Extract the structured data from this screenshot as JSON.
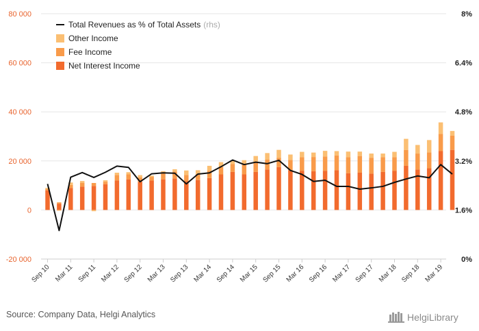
{
  "chart_data": {
    "type": "bar",
    "stacked": true,
    "categories": [
      "Sep 10",
      "Dec 10",
      "Mar 11",
      "Jun 11",
      "Sep 11",
      "Dec 11",
      "Mar 12",
      "Jun 12",
      "Sep 12",
      "Dec 12",
      "Mar 13",
      "Jun 13",
      "Sep 13",
      "Dec 13",
      "Mar 14",
      "Jun 14",
      "Sep 14",
      "Dec 14",
      "Mar 15",
      "Jun 15",
      "Sep 15",
      "Dec 15",
      "Mar 16",
      "Jun 16",
      "Sep 16",
      "Dec 16",
      "Mar 17",
      "Jun 17",
      "Sep 17",
      "Dec 17",
      "Mar 18",
      "Jun 18",
      "Sep 18",
      "Dec 18",
      "Mar 19",
      "Jun 19"
    ],
    "x_tick_labels": [
      "Sep 10",
      "Mar 11",
      "Sep 11",
      "Mar 12",
      "Sep 12",
      "Mar 13",
      "Sep 13",
      "Mar 14",
      "Sep 14",
      "Mar 15",
      "Sep 15",
      "Mar 16",
      "Sep 16",
      "Mar 17",
      "Sep 17",
      "Mar 18",
      "Sep 18",
      "Mar 19"
    ],
    "series": [
      {
        "name": "Net Interest Income",
        "color": "#f26b2e",
        "values": [
          8000,
          2500,
          9000,
          9500,
          9800,
          10500,
          12000,
          12500,
          11500,
          12000,
          12500,
          12800,
          11800,
          12200,
          13000,
          14500,
          15500,
          14500,
          15500,
          16500,
          17500,
          16200,
          16000,
          15800,
          16000,
          16200,
          15000,
          15200,
          14800,
          15500,
          16000,
          18000,
          16500,
          17000,
          24000,
          24500
        ]
      },
      {
        "name": "Fee Income",
        "color": "#f99b4a",
        "values": [
          500,
          600,
          1200,
          1500,
          1200,
          1000,
          2200,
          2000,
          1800,
          1500,
          2300,
          2800,
          2500,
          2500,
          3000,
          3000,
          3200,
          4000,
          4000,
          4000,
          3800,
          4200,
          5500,
          5800,
          5800,
          6000,
          6500,
          6800,
          6500,
          6000,
          5500,
          6500,
          6500,
          6500,
          7000,
          5800
        ]
      },
      {
        "name": "Other Income",
        "color": "#fbbf73",
        "values": [
          500,
          -300,
          1000,
          800,
          -500,
          600,
          1000,
          900,
          900,
          500,
          1000,
          1000,
          1800,
          1500,
          2000,
          2000,
          1500,
          1800,
          2500,
          2700,
          3200,
          2200,
          2200,
          1800,
          2300,
          1800,
          2300,
          1800,
          1700,
          1500,
          2200,
          4500,
          3500,
          5000,
          4700,
          1900
        ]
      },
      {
        "name": "Total Revenues as % of Total Assets",
        "axis": "rhs",
        "type": "line",
        "color": "#111111",
        "values": [
          2.45,
          0.93,
          2.67,
          2.82,
          2.66,
          2.83,
          3.03,
          2.99,
          2.52,
          2.78,
          2.81,
          2.8,
          2.45,
          2.77,
          2.81,
          3.01,
          3.23,
          3.08,
          3.16,
          3.11,
          3.22,
          2.89,
          2.76,
          2.53,
          2.57,
          2.37,
          2.37,
          2.28,
          2.32,
          2.37,
          2.5,
          2.61,
          2.71,
          2.65,
          3.08,
          2.77
        ]
      }
    ],
    "ylim": [
      -20000,
      80000
    ],
    "y_ticks": [
      "-20 000",
      "0",
      "20 000",
      "40 000",
      "60 000",
      "80 000"
    ],
    "y2lim": [
      0,
      8
    ],
    "y2_ticks": [
      "0%",
      "1.6%",
      "3.2%",
      "4.8%",
      "6.4%",
      "8%"
    ],
    "grid": true,
    "legend_position": "top-left",
    "legend": [
      {
        "label": "Total Revenues as % of Total Assets",
        "suffix": "(rhs)",
        "kind": "line",
        "color": "#111111"
      },
      {
        "label": "Other Income",
        "kind": "box",
        "color": "#fbbf73"
      },
      {
        "label": "Fee Income",
        "kind": "box",
        "color": "#f99b4a"
      },
      {
        "label": "Net Interest Income",
        "kind": "box",
        "color": "#f26b2e"
      }
    ]
  },
  "footer": {
    "source": "Source: Company Data, Helgi Analytics",
    "brand": "HelgiLibrary"
  }
}
